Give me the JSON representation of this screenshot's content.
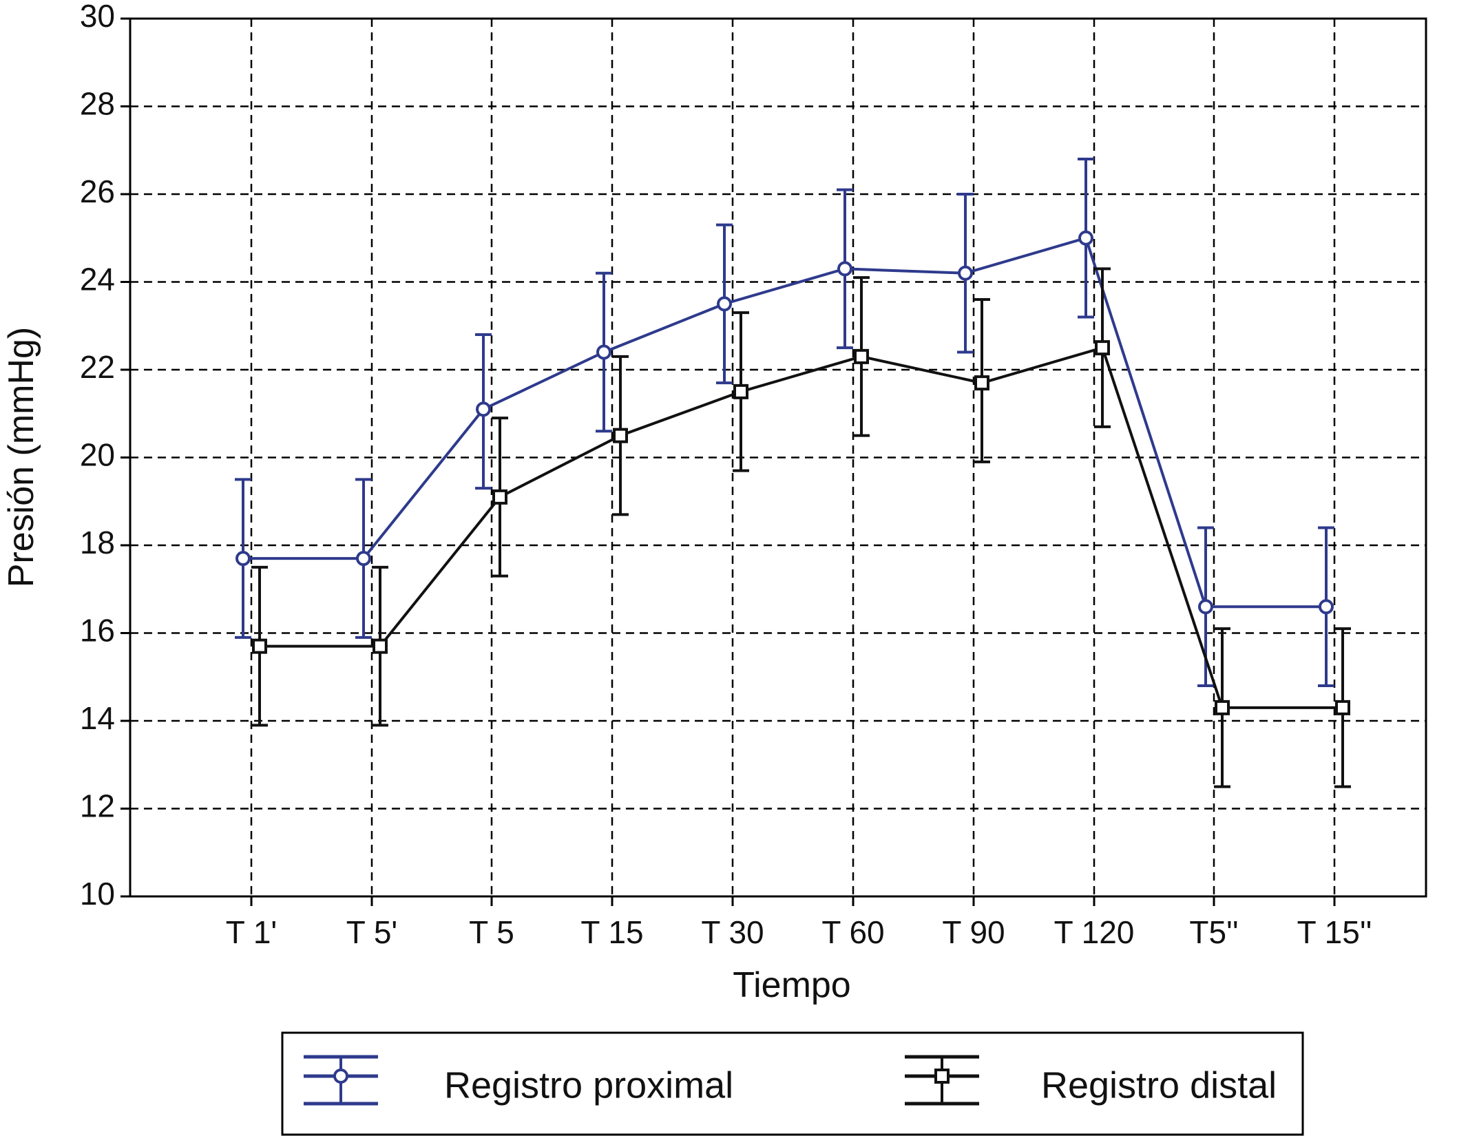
{
  "chart_data": {
    "type": "line",
    "xlabel": "Tiempo",
    "ylabel": "Presión (mmHg)",
    "ylim": [
      10,
      30
    ],
    "yticks": [
      10,
      12,
      14,
      16,
      18,
      20,
      22,
      24,
      26,
      28,
      30
    ],
    "categories": [
      "T 1'",
      "T 5'",
      "T 5",
      "T 15",
      "T 30",
      "T 60",
      "T 90",
      "T 120",
      "T5''",
      "T 15''"
    ],
    "grid": true,
    "legend_position": "bottom",
    "series": [
      {
        "name": "Registro proximal",
        "color": "#2e3a8c",
        "marker": "circle",
        "values": [
          17.7,
          17.7,
          21.1,
          22.4,
          23.5,
          24.3,
          24.2,
          25.0,
          16.6,
          16.6
        ],
        "error_low": [
          15.9,
          15.9,
          19.3,
          20.6,
          21.7,
          22.5,
          22.4,
          23.2,
          14.8,
          14.8
        ],
        "error_high": [
          19.5,
          19.5,
          22.8,
          24.2,
          25.3,
          26.1,
          26.0,
          26.8,
          18.4,
          18.4
        ]
      },
      {
        "name": "Registro distal",
        "color": "#111111",
        "marker": "square",
        "values": [
          15.7,
          15.7,
          19.1,
          20.5,
          21.5,
          22.3,
          21.7,
          22.5,
          14.3,
          14.3
        ],
        "error_low": [
          13.9,
          13.9,
          17.3,
          18.7,
          19.7,
          20.5,
          19.9,
          20.7,
          12.5,
          12.5
        ],
        "error_high": [
          17.5,
          17.5,
          20.9,
          22.3,
          23.3,
          24.1,
          23.6,
          24.3,
          16.1,
          16.1
        ]
      }
    ]
  }
}
